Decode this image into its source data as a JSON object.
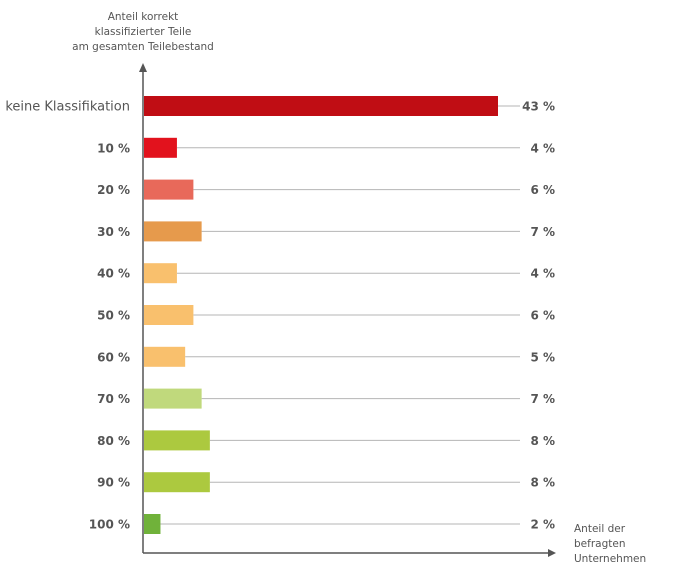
{
  "chart_data": {
    "type": "bar",
    "orientation": "horizontal",
    "ylabel": [
      "Anteil korrekt",
      "klassifizierter Teile",
      "am gesamten Teilebestand"
    ],
    "xlabel": [
      "Anteil der",
      "befragten",
      "Unternehmen"
    ],
    "categories": [
      "keine Klassifikation",
      "10 %",
      "20 %",
      "30 %",
      "40 %",
      "50 %",
      "60 %",
      "70 %",
      "80 %",
      "90 %",
      "100 %"
    ],
    "values": [
      43,
      4,
      6,
      7,
      4,
      6,
      5,
      7,
      8,
      8,
      2
    ],
    "value_labels": [
      "43 %",
      "4 %",
      "6 %",
      "7 %",
      "4 %",
      "6 %",
      "5 %",
      "7 %",
      "8 %",
      "8 %",
      "2 %"
    ],
    "colors": [
      "#c00d14",
      "#e2121d",
      "#e8695a",
      "#e69a4c",
      "#f9c06d",
      "#f9c06d",
      "#f9c06d",
      "#c0d97c",
      "#acc93f",
      "#acc93f",
      "#70b23a"
    ],
    "xlim": [
      0,
      43
    ],
    "grid": false
  }
}
